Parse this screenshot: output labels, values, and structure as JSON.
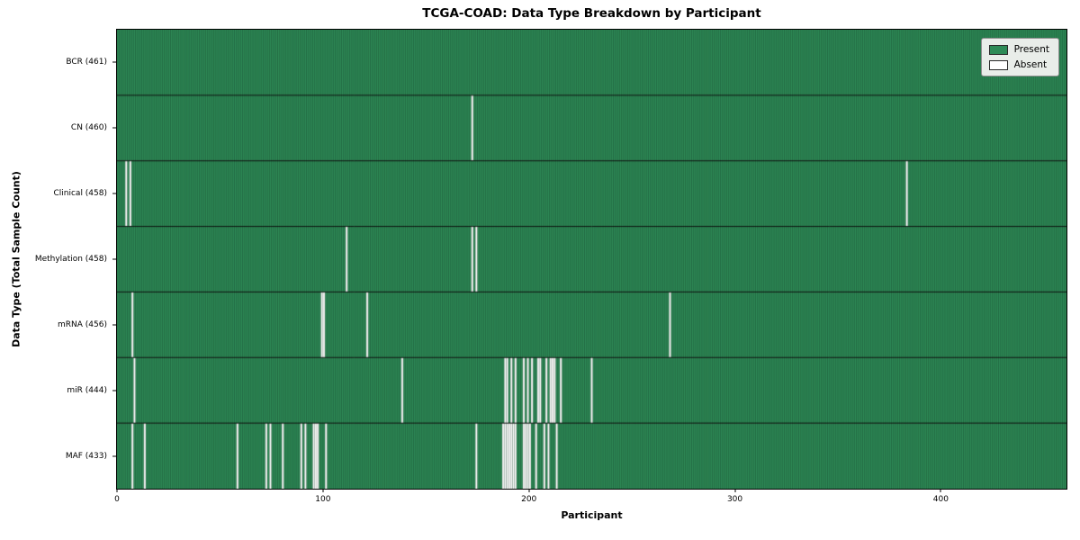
{
  "title": "TCGA-COAD: Data Type Breakdown by Participant",
  "xlabel": "Participant",
  "ylabel": "Data Type (Total Sample Count)",
  "legend": {
    "present_label": "Present",
    "absent_label": "Absent"
  },
  "colors": {
    "present": "#2e8b57",
    "absent": "#ffffff",
    "cell_edge": "rgba(0,0,0,0.55)",
    "row_divider": "#000000",
    "legend_bg": "#e9ede9"
  },
  "chart_data": {
    "type": "heatmap",
    "title": "TCGA-COAD: Data Type Breakdown by Participant",
    "xlabel": "Participant",
    "ylabel": "Data Type (Total Sample Count)",
    "legend_entries": [
      "Present",
      "Absent"
    ],
    "legend_position": "upper right",
    "n_participants": 461,
    "x_ticks": [
      0,
      100,
      200,
      300,
      400
    ],
    "rows": [
      {
        "label": "BCR (461)",
        "data_type": "BCR",
        "count": 461,
        "absent_participants": []
      },
      {
        "label": "CN (460)",
        "data_type": "CN",
        "count": 460,
        "absent_participants": [
          172
        ]
      },
      {
        "label": "Clinical (458)",
        "data_type": "Clinical",
        "count": 458,
        "absent_participants": [
          4,
          6,
          383
        ]
      },
      {
        "label": "Methylation (458)",
        "data_type": "Methylation",
        "count": 458,
        "absent_participants": [
          111,
          172,
          174
        ]
      },
      {
        "label": "mRNA (456)",
        "data_type": "mRNA",
        "count": 456,
        "absent_participants": [
          7,
          99,
          100,
          121,
          268
        ]
      },
      {
        "label": "miR (444)",
        "data_type": "miR",
        "count": 444,
        "absent_participants": [
          8,
          138,
          188,
          189,
          191,
          193,
          197,
          199,
          201,
          204,
          205,
          208,
          210,
          211,
          212,
          215,
          230
        ]
      },
      {
        "label": "MAF (433)",
        "data_type": "MAF",
        "count": 433,
        "absent_participants": [
          7,
          13,
          58,
          72,
          74,
          80,
          89,
          91,
          95,
          96,
          97,
          101,
          174,
          187,
          188,
          189,
          190,
          191,
          192,
          193,
          197,
          198,
          199,
          200,
          203,
          207,
          209,
          213
        ]
      }
    ]
  }
}
